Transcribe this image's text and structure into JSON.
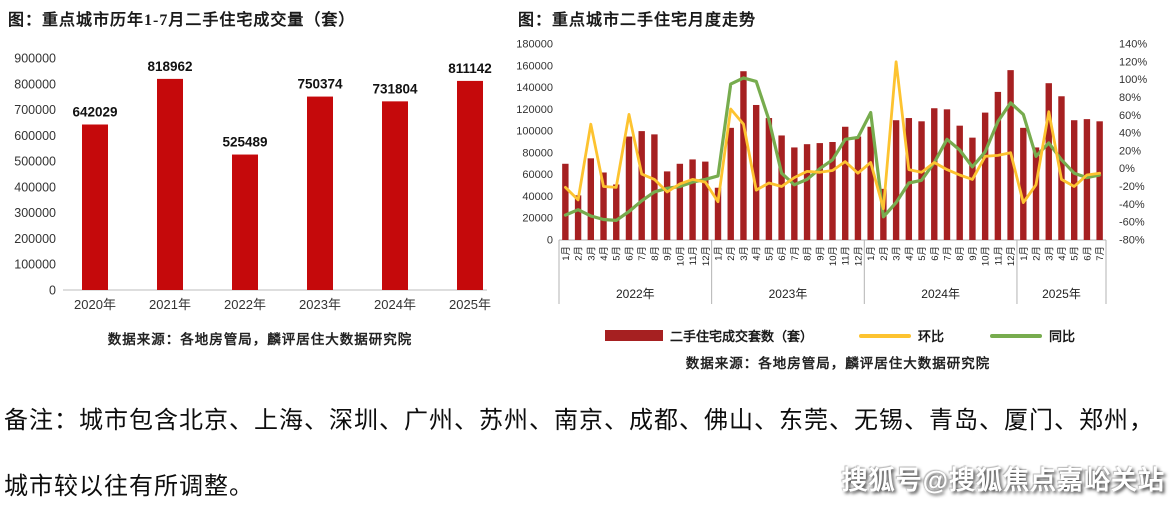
{
  "page": {
    "note_line1": "备注：城市包含北京、上海、深圳、广州、苏州、南京、成都、佛山、东莞、无锡、青岛、厦门、郑州，",
    "note_line2": "城市较以往有所调整。",
    "watermark": "搜狐号@搜狐焦点嘉峪关站"
  },
  "chart_data": [
    {
      "type": "bar",
      "title": "图：重点城市历年1-7月二手住宅成交量（套）",
      "categories": [
        "2020年",
        "2021年",
        "2022年",
        "2023年",
        "2024年",
        "2025年"
      ],
      "values": [
        642029,
        818962,
        525489,
        750374,
        731804,
        811142
      ],
      "ylabel": "",
      "ylim": [
        0,
        900000
      ],
      "ytick_step": 100000,
      "grid": false,
      "data_labels": true,
      "bar_color": "#C5090B",
      "source": "数据来源：各地房管局，麟评居住大数据研究院"
    },
    {
      "type": "combo",
      "title": "图：重点城市二手住宅月度走势",
      "x_groups": [
        {
          "year": "2022年",
          "months": 12
        },
        {
          "year": "2023年",
          "months": 12
        },
        {
          "year": "2024年",
          "months": 12
        },
        {
          "year": "2025年",
          "months": 7
        }
      ],
      "month_labels": [
        "1月",
        "2月",
        "3月",
        "4月",
        "5月",
        "6月",
        "7月",
        "8月",
        "9月",
        "10月",
        "11月",
        "12月"
      ],
      "left_axis": {
        "min": 0,
        "max": 180000,
        "step": 20000
      },
      "right_axis": {
        "min": -80,
        "max": 140,
        "step": 20,
        "suffix": "%"
      },
      "grid": false,
      "legend_position": "bottom",
      "series": [
        {
          "name": "二手住宅成交套数（套）",
          "type": "bar",
          "axis": "left",
          "color": "#A62021",
          "values": [
            70000,
            41000,
            75000,
            62000,
            51000,
            95000,
            100000,
            97000,
            63000,
            70000,
            74000,
            72000,
            48000,
            103000,
            155000,
            124000,
            112000,
            96000,
            85000,
            88000,
            89000,
            90000,
            104000,
            95000,
            104000,
            47000,
            110000,
            112000,
            109000,
            121000,
            120000,
            105000,
            94000,
            117000,
            136000,
            156000,
            103000,
            85000,
            144000,
            132000,
            110000,
            111000,
            109000
          ]
        },
        {
          "name": "环比",
          "type": "line",
          "axis": "right",
          "color": "#FDC330",
          "values": [
            -21,
            -35,
            50,
            -20,
            -21,
            61,
            -6,
            -12,
            -26,
            -17,
            -12,
            -15,
            -37,
            67,
            50,
            -24,
            -16,
            -20,
            -10,
            -3,
            -4,
            -2,
            8,
            -5,
            7,
            -45,
            120,
            -1,
            -4,
            7,
            -1,
            -7,
            -12,
            14,
            15,
            18,
            -38,
            -18,
            64,
            -12,
            -20,
            -7,
            -5
          ]
        },
        {
          "name": "同比",
          "type": "line",
          "axis": "right",
          "color": "#77AC4E",
          "values": [
            -52,
            -46,
            -53,
            -57,
            -58,
            -48,
            -36,
            -26,
            -22,
            -20,
            -15,
            -12,
            -8,
            95,
            102,
            98,
            55,
            -5,
            -18,
            -12,
            0,
            10,
            33,
            35,
            63,
            -54,
            -38,
            -16,
            -13,
            7,
            33,
            21,
            2,
            19,
            53,
            74,
            61,
            14,
            29,
            10,
            -5,
            -10,
            -7
          ]
        }
      ],
      "source": "数据来源：各地房管局，麟评居住大数据研究院"
    }
  ]
}
